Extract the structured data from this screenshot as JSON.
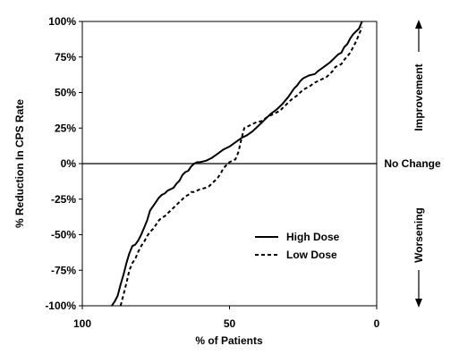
{
  "chart_data": {
    "type": "line",
    "title": "",
    "xlabel": "% of Patients",
    "ylabel": "% Reduction In CPS Rate",
    "xlim": [
      100,
      0
    ],
    "ylim": [
      -100,
      100
    ],
    "x_reversed": true,
    "x_ticks": [
      100,
      50,
      0
    ],
    "x_tick_labels": [
      "100",
      "50",
      "0"
    ],
    "y_ticks": [
      100,
      75,
      50,
      25,
      0,
      -25,
      -50,
      -75,
      -100
    ],
    "y_tick_labels": [
      "100%",
      "75%",
      "50%",
      "25%",
      "0%",
      "-25%",
      "-50%",
      "-75%",
      "-100%"
    ],
    "reference_line": {
      "y": 0,
      "label": "No Change"
    },
    "side_annotations": {
      "upper": "Improvement",
      "lower": "Worsening"
    },
    "legend_position": "lower-right",
    "grid": false,
    "series": [
      {
        "name": "High Dose",
        "style": "solid",
        "color": "#000000",
        "points": [
          [
            90,
            -100
          ],
          [
            89,
            -97
          ],
          [
            88,
            -93
          ],
          [
            87,
            -85
          ],
          [
            86,
            -78
          ],
          [
            85,
            -70
          ],
          [
            84,
            -63
          ],
          [
            83,
            -58
          ],
          [
            82,
            -57
          ],
          [
            81,
            -54
          ],
          [
            80,
            -50
          ],
          [
            79,
            -45
          ],
          [
            78,
            -40
          ],
          [
            77,
            -33
          ],
          [
            76,
            -30
          ],
          [
            75,
            -27
          ],
          [
            74,
            -24
          ],
          [
            73,
            -22
          ],
          [
            72,
            -21
          ],
          [
            71,
            -19
          ],
          [
            70,
            -18
          ],
          [
            69,
            -17
          ],
          [
            68,
            -14
          ],
          [
            67,
            -12
          ],
          [
            66,
            -8
          ],
          [
            65,
            -6
          ],
          [
            64,
            -5
          ],
          [
            63,
            -2
          ],
          [
            62,
            0
          ],
          [
            61,
            1
          ],
          [
            60,
            1
          ],
          [
            58,
            2
          ],
          [
            56,
            4
          ],
          [
            54,
            7
          ],
          [
            52,
            10
          ],
          [
            50,
            12
          ],
          [
            48,
            15
          ],
          [
            46,
            18
          ],
          [
            44,
            20
          ],
          [
            42,
            23
          ],
          [
            40,
            27
          ],
          [
            38,
            31
          ],
          [
            36,
            35
          ],
          [
            34,
            38
          ],
          [
            32,
            42
          ],
          [
            30,
            47
          ],
          [
            28,
            53
          ],
          [
            27,
            55
          ],
          [
            26,
            58
          ],
          [
            25,
            60
          ],
          [
            24,
            61
          ],
          [
            23,
            62
          ],
          [
            21,
            63
          ],
          [
            20,
            65
          ],
          [
            18,
            68
          ],
          [
            16,
            71
          ],
          [
            14,
            75
          ],
          [
            13,
            77
          ],
          [
            12,
            78
          ],
          [
            11,
            82
          ],
          [
            10,
            84
          ],
          [
            9,
            88
          ],
          [
            8,
            91
          ],
          [
            6,
            95
          ],
          [
            5,
            100
          ]
        ]
      },
      {
        "name": "Low Dose",
        "style": "dashed",
        "color": "#000000",
        "points": [
          [
            87,
            -100
          ],
          [
            86,
            -92
          ],
          [
            85,
            -84
          ],
          [
            84,
            -75
          ],
          [
            83,
            -70
          ],
          [
            82,
            -67
          ],
          [
            81,
            -62
          ],
          [
            80,
            -58
          ],
          [
            79,
            -55
          ],
          [
            78,
            -51
          ],
          [
            77,
            -48
          ],
          [
            76,
            -46
          ],
          [
            75,
            -43
          ],
          [
            74,
            -40
          ],
          [
            73,
            -38
          ],
          [
            72,
            -37
          ],
          [
            71,
            -35
          ],
          [
            70,
            -33
          ],
          [
            69,
            -31
          ],
          [
            68,
            -29
          ],
          [
            67,
            -27
          ],
          [
            66,
            -25
          ],
          [
            65,
            -23
          ],
          [
            64,
            -22
          ],
          [
            63,
            -20
          ],
          [
            62,
            -20
          ],
          [
            61,
            -19
          ],
          [
            60,
            -18
          ],
          [
            58,
            -17
          ],
          [
            57,
            -16
          ],
          [
            56,
            -14
          ],
          [
            55,
            -12
          ],
          [
            54,
            -10
          ],
          [
            53,
            -7
          ],
          [
            52,
            -3
          ],
          [
            51,
            -1
          ],
          [
            50,
            1
          ],
          [
            49,
            2
          ],
          [
            48,
            3
          ],
          [
            47,
            8
          ],
          [
            46,
            17
          ],
          [
            45,
            25
          ],
          [
            43,
            27
          ],
          [
            41,
            29
          ],
          [
            39,
            30
          ],
          [
            37,
            33
          ],
          [
            35,
            35
          ],
          [
            33,
            37
          ],
          [
            31,
            41
          ],
          [
            29,
            45
          ],
          [
            27,
            48
          ],
          [
            25,
            52
          ],
          [
            23,
            54
          ],
          [
            21,
            57
          ],
          [
            19,
            59
          ],
          [
            17,
            61
          ],
          [
            15,
            65
          ],
          [
            14,
            68
          ],
          [
            12,
            70
          ],
          [
            11,
            73
          ],
          [
            9,
            78
          ],
          [
            7,
            86
          ],
          [
            5,
            96
          ]
        ]
      }
    ]
  }
}
